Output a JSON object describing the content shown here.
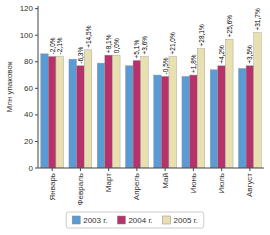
{
  "chart_data": {
    "type": "bar",
    "categories": [
      "Январь",
      "Февраль",
      "Март",
      "Апрель",
      "Май",
      "Июнь",
      "Июль",
      "Август"
    ],
    "series": [
      {
        "name": "2003 г.",
        "color": "#5b9bd5",
        "values": [
          86,
          82,
          79,
          77,
          70,
          69,
          74,
          75
        ]
      },
      {
        "name": "2004 г.",
        "color": "#b5336a",
        "values": [
          84,
          77,
          85,
          81,
          69,
          70,
          77,
          77
        ],
        "annotations": [
          "-2,0%",
          "-6,3%",
          "+8,1%",
          "+5,1%",
          "-0,5%",
          "+1,8%",
          "+4,2%",
          "+3,5%"
        ]
      },
      {
        "name": "2005 г.",
        "color": "#e8e0b0",
        "values": [
          84,
          89,
          85,
          84,
          84,
          90,
          97,
          102
        ],
        "annotations": [
          "-2,1%",
          "+14,5%",
          "0,0%",
          "+3,6%",
          "+21,0%",
          "+28,1%",
          "+25,6%",
          "+31,7%"
        ]
      }
    ],
    "y_label": "Млн упаковок",
    "ylim": [
      0,
      122
    ],
    "yticks": [
      0,
      20,
      40,
      60,
      80,
      100,
      120
    ],
    "grid": false,
    "legend": "bottom"
  }
}
